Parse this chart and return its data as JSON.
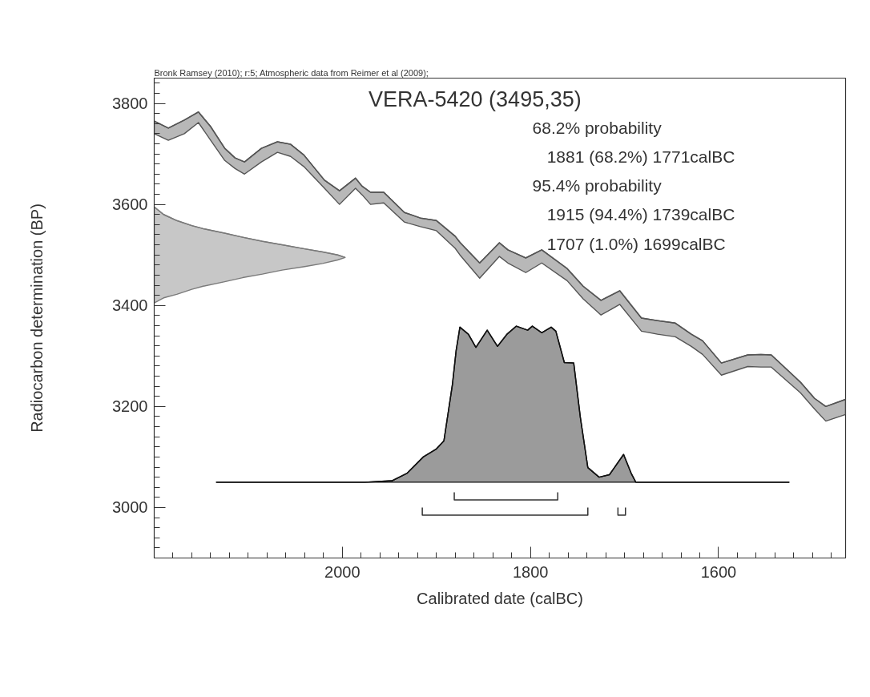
{
  "chart_data": {
    "type": "line",
    "title": "VERA-5420 (3495,35)",
    "xlabel": "Calibrated date (calBC)",
    "ylabel": "Radiocarbon determination (BP)",
    "annotations": [
      "Bronk Ramsey (2010); r:5; Atmospheric data from Reimer et al (2009);",
      "68.2% probability",
      "1881 (68.2%) 1771calBC",
      "95.4% probability",
      "1915 (94.4%) 1739calBC",
      "1707 (1.0%) 1699calBC"
    ],
    "xlim": [
      2200,
      1465
    ],
    "ylim": [
      2900,
      3850
    ],
    "xticks": [
      {
        "value": 2180,
        "label": null
      },
      {
        "value": 2160,
        "label": null
      },
      {
        "value": 2140,
        "label": null
      },
      {
        "value": 2120,
        "label": null
      },
      {
        "value": 2100,
        "label": null
      },
      {
        "value": 2080,
        "label": null
      },
      {
        "value": 2060,
        "label": null
      },
      {
        "value": 2040,
        "label": null
      },
      {
        "value": 2020,
        "label": null
      },
      2000,
      {
        "value": 1980,
        "label": null
      },
      {
        "value": 1960,
        "label": null
      },
      {
        "value": 1940,
        "label": null
      },
      {
        "value": 1920,
        "label": null
      },
      {
        "value": 1900,
        "label": null
      },
      {
        "value": 1880,
        "label": null
      },
      {
        "value": 1860,
        "label": null
      },
      {
        "value": 1840,
        "label": null
      },
      {
        "value": 1820,
        "label": null
      },
      1800,
      {
        "value": 1780,
        "label": null
      },
      {
        "value": 1760,
        "label": null
      },
      {
        "value": 1740,
        "label": null
      },
      {
        "value": 1720,
        "label": null
      },
      {
        "value": 1700,
        "label": null
      },
      {
        "value": 1680,
        "label": null
      },
      {
        "value": 1660,
        "label": null
      },
      {
        "value": 1640,
        "label": null
      },
      {
        "value": 1620,
        "label": null
      },
      1600,
      {
        "value": 1580,
        "label": null
      },
      {
        "value": 1560,
        "label": null
      },
      {
        "value": 1540,
        "label": null
      },
      {
        "value": 1520,
        "label": null
      },
      {
        "value": 1500,
        "label": null
      },
      {
        "value": 1480,
        "label": null
      }
    ],
    "yticks": [
      {
        "value": 2920,
        "label": null
      },
      {
        "value": 2940,
        "label": null
      },
      {
        "value": 2960,
        "label": null
      },
      {
        "value": 2980,
        "label": null
      },
      3000,
      {
        "value": 3020,
        "label": null
      },
      {
        "value": 3040,
        "label": null
      },
      {
        "value": 3060,
        "label": null
      },
      {
        "value": 3080,
        "label": null
      },
      {
        "value": 3100,
        "label": null
      },
      {
        "value": 3120,
        "label": null
      },
      {
        "value": 3140,
        "label": null
      },
      {
        "value": 3160,
        "label": null
      },
      {
        "value": 3180,
        "label": null
      },
      3200,
      {
        "value": 3220,
        "label": null
      },
      {
        "value": 3240,
        "label": null
      },
      {
        "value": 3260,
        "label": null
      },
      {
        "value": 3280,
        "label": null
      },
      {
        "value": 3300,
        "label": null
      },
      {
        "value": 3320,
        "label": null
      },
      {
        "value": 3340,
        "label": null
      },
      {
        "value": 3360,
        "label": null
      },
      {
        "value": 3380,
        "label": null
      },
      3400,
      {
        "value": 3420,
        "label": null
      },
      {
        "value": 3440,
        "label": null
      },
      {
        "value": 3460,
        "label": null
      },
      {
        "value": 3480,
        "label": null
      },
      {
        "value": 3500,
        "label": null
      },
      {
        "value": 3520,
        "label": null
      },
      {
        "value": 3540,
        "label": null
      },
      {
        "value": 3560,
        "label": null
      },
      {
        "value": 3580,
        "label": null
      },
      3600,
      {
        "value": 3620,
        "label": null
      },
      {
        "value": 3640,
        "label": null
      },
      {
        "value": 3660,
        "label": null
      },
      {
        "value": 3680,
        "label": null
      },
      {
        "value": 3700,
        "label": null
      },
      {
        "value": 3720,
        "label": null
      },
      {
        "value": 3740,
        "label": null
      },
      {
        "value": 3760,
        "label": null
      },
      {
        "value": 3780,
        "label": null
      },
      3800,
      {
        "value": 3820,
        "label": null
      },
      {
        "value": 3840,
        "label": null
      }
    ],
    "grid": false,
    "series": [
      {
        "color": "#555555",
        "x": [
          2200,
          2185,
          2168,
          2153,
          2140,
          2125,
          2114,
          2104,
          2086,
          2069,
          2055,
          2041,
          2019,
          2003,
          1986,
          1979,
          1970,
          1956,
          1934,
          1917,
          1900,
          1880,
          1875,
          1854,
          1833,
          1824,
          1805,
          1788,
          1761,
          1744,
          1725,
          1705,
          1682,
          1665,
          1646,
          1629,
          1617,
          1597,
          1569,
          1555,
          1544,
          1513,
          1498,
          1486,
          1465
        ],
        "values": [
          3765,
          3751,
          3767,
          3783,
          3754,
          3711,
          3692,
          3684,
          3711,
          3724,
          3719,
          3698,
          3648,
          3627,
          3652,
          3636,
          3624,
          3624,
          3584,
          3573,
          3568,
          3537,
          3525,
          3484,
          3524,
          3510,
          3494,
          3510,
          3473,
          3438,
          3410,
          3429,
          3375,
          3370,
          3365,
          3343,
          3330,
          3286,
          3302,
          3303,
          3302,
          3248,
          3216,
          3200,
          3214
        ],
        "lower": [
          3740,
          3727,
          3740,
          3762,
          3727,
          3687,
          3671,
          3660,
          3684,
          3703,
          3695,
          3675,
          3632,
          3600,
          3632,
          3619,
          3600,
          3603,
          3565,
          3556,
          3548,
          3513,
          3500,
          3454,
          3497,
          3484,
          3465,
          3484,
          3449,
          3413,
          3381,
          3402,
          3349,
          3343,
          3338,
          3319,
          3303,
          3262,
          3279,
          3278,
          3278,
          3227,
          3195,
          3171,
          3184
        ],
        "upper": [
          3765,
          3751,
          3767,
          3783,
          3754,
          3711,
          3692,
          3684,
          3711,
          3724,
          3719,
          3698,
          3648,
          3627,
          3652,
          3636,
          3624,
          3624,
          3584,
          3573,
          3568,
          3537,
          3525,
          3484,
          3524,
          3510,
          3494,
          3510,
          3473,
          3438,
          3410,
          3429,
          3375,
          3370,
          3365,
          3343,
          3330,
          3286,
          3302,
          3303,
          3302,
          3248,
          3216,
          3200,
          3214
        ]
      },
      {
        "color": "#7a7a7a",
        "x": [
          2200,
          2190,
          2176,
          2160,
          2148,
          2125,
          2106,
          2085,
          2064,
          2040,
          2021,
          2005,
          1997
        ],
        "values": [
          3595,
          3580,
          3568,
          3558,
          3552,
          3543,
          3535,
          3527,
          3520,
          3512,
          3506,
          3500,
          3495
        ],
        "lower": [
          3405,
          3415,
          3422,
          3432,
          3438,
          3447,
          3455,
          3462,
          3470,
          3477,
          3483,
          3490,
          3495
        ],
        "upper": [
          3595,
          3580,
          3568,
          3558,
          3552,
          3543,
          3535,
          3527,
          3520,
          3512,
          3506,
          3500,
          3495
        ]
      },
      {
        "color": "#111111",
        "x": [
          2134,
          1976,
          1947,
          1931,
          1914,
          1900,
          1892,
          1883,
          1879,
          1875,
          1866,
          1858,
          1846,
          1835,
          1825,
          1815,
          1803,
          1798,
          1788,
          1778,
          1773,
          1764,
          1754,
          1747,
          1739,
          1727,
          1716,
          1701,
          1693,
          1688,
          1525
        ],
        "values": [
          3050,
          3050,
          3053,
          3068,
          3100,
          3116,
          3132,
          3243,
          3311,
          3357,
          3343,
          3317,
          3351,
          3319,
          3343,
          3359,
          3351,
          3359,
          3346,
          3357,
          3349,
          3287,
          3286,
          3179,
          3079,
          3060,
          3065,
          3105,
          3068,
          3050,
          3050
        ],
        "lower": [
          3050,
          3050,
          3050,
          3050,
          3050,
          3050,
          3050,
          3050,
          3050,
          3050,
          3050,
          3050,
          3050,
          3050,
          3050,
          3050,
          3050,
          3050,
          3050,
          3050,
          3050,
          3050,
          3050,
          3050,
          3050,
          3050,
          3050,
          3050,
          3050,
          3050,
          3050
        ],
        "upper": [
          3050,
          3050,
          3053,
          3068,
          3100,
          3116,
          3132,
          3243,
          3311,
          3357,
          3343,
          3317,
          3351,
          3319,
          3343,
          3359,
          3351,
          3359,
          3346,
          3357,
          3349,
          3287,
          3286,
          3179,
          3079,
          3060,
          3065,
          3105,
          3068,
          3050,
          3050
        ]
      },
      {
        "color": "#333333",
        "x": [
          1881,
          1881,
          1771,
          1771
        ],
        "values": [
          3030,
          3015,
          3015,
          3030
        ]
      },
      {
        "color": "#333333",
        "x": [
          1915,
          1915,
          1739,
          1739
        ],
        "values": [
          3000,
          2985,
          2985,
          3000
        ]
      },
      {
        "color": "#333333",
        "x": [
          1707,
          1707,
          1699,
          1699
        ],
        "values": [
          3000,
          2985,
          2985,
          3000
        ]
      }
    ]
  }
}
